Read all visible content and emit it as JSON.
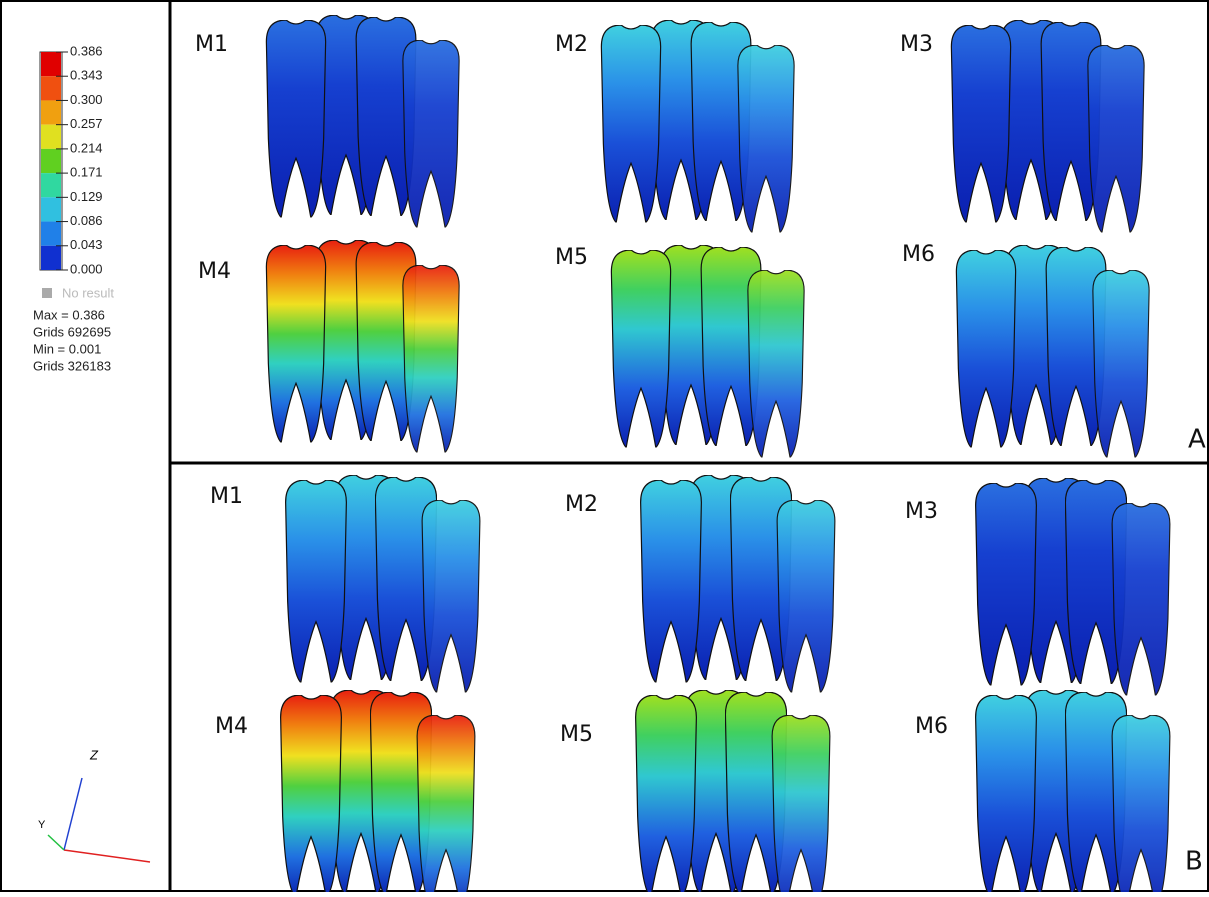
{
  "legend": {
    "ticks": [
      "0.386",
      "0.343",
      "0.300",
      "0.257",
      "0.214",
      "0.171",
      "0.129",
      "0.086",
      "0.043",
      "0.000"
    ],
    "no_result": "No result",
    "max": "Max = 0.386",
    "max_grids": "Grids 692695",
    "min": "Min = 0.001",
    "min_grids": "Grids 326183"
  },
  "axes": {
    "z": "Z",
    "y": "Y"
  },
  "panels": [
    {
      "label": "A",
      "models": [
        "M1",
        "M2",
        "M3",
        "M4",
        "M5",
        "M6"
      ]
    },
    {
      "label": "B",
      "models": [
        "M1",
        "M2",
        "M3",
        "M4",
        "M5",
        "M6"
      ]
    }
  ]
}
